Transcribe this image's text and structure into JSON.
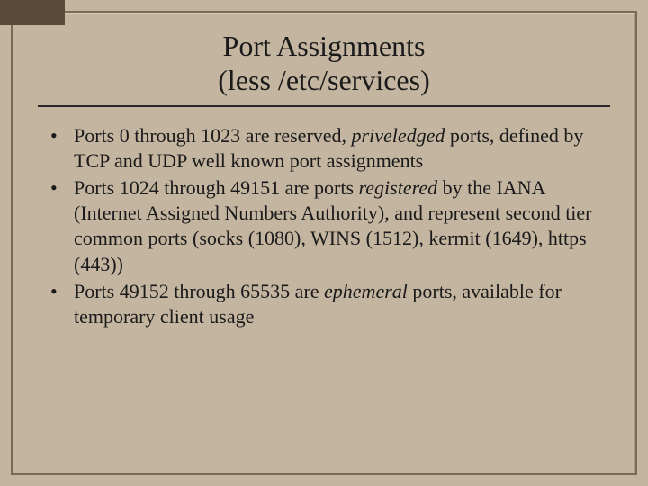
{
  "slide": {
    "background_color": "#c4b5a0",
    "border_color": "#7a6a55",
    "corner_tab_color": "#5a4a3a",
    "title": {
      "line1": "Port Assignments",
      "line2": "(less /etc/services)",
      "font_size": 32,
      "color": "#1a1a1a"
    },
    "bullets": [
      {
        "pre1": "Ports 0 through 1023 are reserved, ",
        "em1": "priveledged",
        "post1": " ports, defined by TCP and UDP well known port assignments"
      },
      {
        "pre1": "Ports 1024 through 49151 are ports ",
        "em1": "registered",
        "post1": " by the IANA (Internet Assigned Numbers Authority), and represent second tier common ports (socks (1080), WINS (1512), kermit (1649), https (443))"
      },
      {
        "pre1": "Ports 49152 through 65535 are ",
        "em1": "ephemeral",
        "post1": " ports, available for temporary client usage"
      }
    ],
    "body_font_size": 22,
    "body_color": "#1a1a1a"
  }
}
